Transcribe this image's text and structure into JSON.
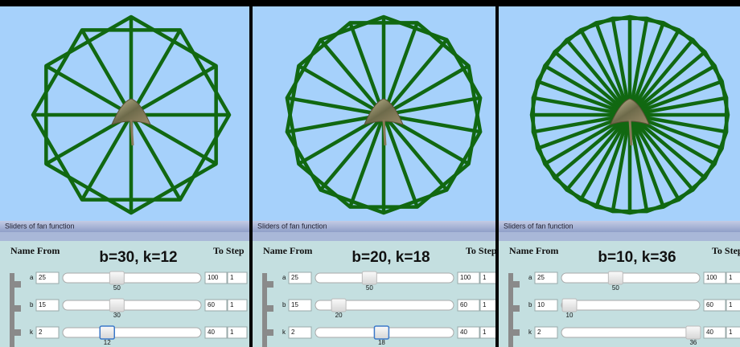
{
  "panels": [
    {
      "caption": "Sliders of fan function",
      "header": {
        "name_from": "Name From",
        "label": "b=30, k=12",
        "to_step": "To Step"
      },
      "sliders": [
        {
          "name": "a",
          "from": 25,
          "value": 50,
          "to": 100,
          "step": 1
        },
        {
          "name": "b",
          "from": 15,
          "value": 30,
          "to": 60,
          "step": 1
        },
        {
          "name": "k",
          "from": 2,
          "value": 12,
          "to": 40,
          "step": 1
        }
      ]
    },
    {
      "caption": "Sliders of fan function",
      "header": {
        "name_from": "Name From",
        "label": "b=20, k=18",
        "to_step": "To Step"
      },
      "sliders": [
        {
          "name": "a",
          "from": 25,
          "value": 50,
          "to": 100,
          "step": 1
        },
        {
          "name": "b",
          "from": 15,
          "value": 20,
          "to": 60,
          "step": 1
        },
        {
          "name": "k",
          "from": 2,
          "value": 18,
          "to": 40,
          "step": 1
        }
      ]
    },
    {
      "caption": "Sliders of fan function",
      "header": {
        "name_from": "Name From",
        "label": "b=10, k=36",
        "to_step": "To Step"
      },
      "sliders": [
        {
          "name": "a",
          "from": 25,
          "value": 50,
          "to": 100,
          "step": 1
        },
        {
          "name": "b",
          "from": 10,
          "value": 10,
          "to": 60,
          "step": 1
        },
        {
          "name": "k",
          "from": 2,
          "value": 36,
          "to": 40,
          "step": 1
        }
      ]
    }
  ]
}
